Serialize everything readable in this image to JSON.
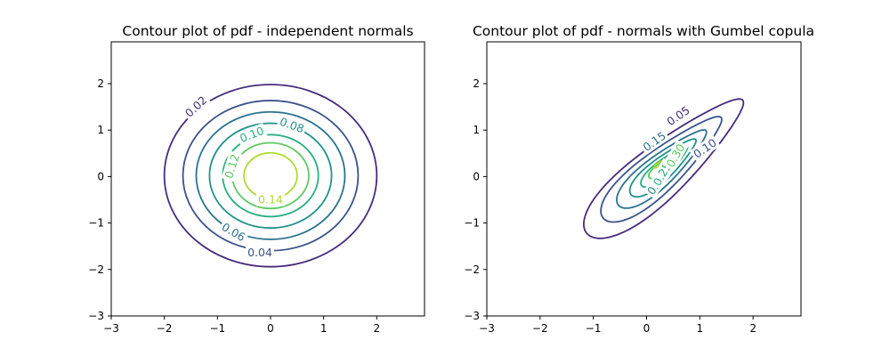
{
  "chart_data": [
    {
      "type": "contour",
      "title": "Contour plot of pdf - independent normals",
      "xlim": [
        -3,
        2.9
      ],
      "ylim": [
        -3,
        2.9
      ],
      "xticks": [
        -3,
        -2,
        -1,
        0,
        1,
        2
      ],
      "yticks": [
        -3,
        -2,
        -1,
        0,
        1,
        2
      ],
      "levels": [
        {
          "value": 0.02,
          "label": "0.02",
          "color": "#472d7b",
          "rx": 2.0,
          "ry": 2.0,
          "label_at": [
            -1.4,
            1.5
          ]
        },
        {
          "value": 0.04,
          "label": "0.04",
          "color": "#3b528b",
          "rx": 1.65,
          "ry": 1.65,
          "label_at": [
            -0.2,
            -1.64
          ]
        },
        {
          "value": 0.06,
          "label": "0.06",
          "color": "#2c728e",
          "rx": 1.4,
          "ry": 1.4,
          "label_at": [
            -0.7,
            -1.2
          ]
        },
        {
          "value": 0.08,
          "label": "0.08",
          "color": "#21918c",
          "rx": 1.15,
          "ry": 1.15,
          "label_at": [
            0.4,
            1.1
          ]
        },
        {
          "value": 0.1,
          "label": "0.10",
          "color": "#28ae80",
          "rx": 0.9,
          "ry": 0.9,
          "label_at": [
            -0.35,
            0.9
          ]
        },
        {
          "value": 0.12,
          "label": "0.12",
          "color": "#5ec962",
          "rx": 0.72,
          "ry": 0.72,
          "label_at": [
            -0.72,
            0.22
          ]
        },
        {
          "value": 0.14,
          "label": "0.14",
          "color": "#addc30",
          "rx": 0.5,
          "ry": 0.5,
          "label_at": [
            0.0,
            -0.5
          ]
        }
      ]
    },
    {
      "type": "contour",
      "title": "Contour plot of pdf - normals with Gumbel copula",
      "xlim": [
        -3,
        2.9
      ],
      "ylim": [
        -3,
        2.9
      ],
      "xticks": [
        -3,
        -2,
        -1,
        0,
        1,
        2
      ],
      "yticks": [
        -3,
        -2,
        -1,
        0,
        1,
        2
      ],
      "levels": [
        {
          "value": 0.05,
          "label": "0.05",
          "color": "#472d7b",
          "label_at": [
            0.6,
            1.3
          ]
        },
        {
          "value": 0.1,
          "label": "0.10",
          "color": "#3b528b",
          "label_at": [
            1.1,
            0.6
          ]
        },
        {
          "value": 0.15,
          "label": "0.15",
          "color": "#2c728e",
          "label_at": [
            0.15,
            0.75
          ]
        },
        {
          "value": 0.2,
          "label": "0.20",
          "color": "#21918c",
          "label_at": [
            0.2,
            -0.15
          ]
        },
        {
          "value": 0.25,
          "label": "0.25",
          "color": "#28ae80",
          "label_at": [
            0.3,
            0.05
          ]
        },
        {
          "value": 0.3,
          "label": "0.30",
          "color": "#5ec962",
          "label_at": [
            0.55,
            0.45
          ]
        },
        {
          "value": 0.35,
          "label": "",
          "color": "#addc30",
          "label_at": [
            0.2,
            0.2
          ]
        }
      ]
    }
  ]
}
